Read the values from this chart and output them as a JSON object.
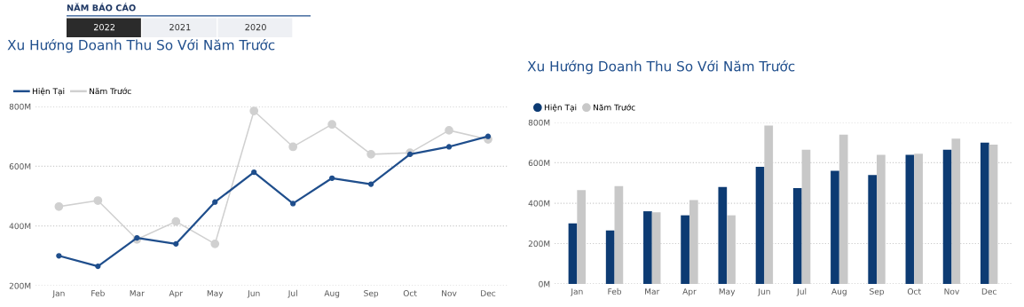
{
  "chart_data": [
    {
      "type": "other",
      "title": "NĂM BÁO CÁO",
      "categories": [
        "2022",
        "2021",
        "2020"
      ],
      "colors": [
        "#2b2b2b",
        "#eef0f4",
        "#eef0f4"
      ]
    },
    {
      "type": "line",
      "title": "Xu Hướng Doanh Thu So Với Năm Trước",
      "categories": [
        "Jan",
        "Feb",
        "Mar",
        "Apr",
        "May",
        "Jun",
        "Jul",
        "Aug",
        "Sep",
        "Oct",
        "Nov",
        "Dec"
      ],
      "series": [
        {
          "name": "Hiện Tại",
          "color": "#1f4e8c",
          "values": [
            300,
            265,
            360,
            340,
            480,
            580,
            475,
            560,
            540,
            640,
            665,
            700
          ]
        },
        {
          "name": "Năm Trước",
          "color": "#d0d0d0",
          "values": [
            465,
            485,
            355,
            415,
            340,
            785,
            665,
            740,
            640,
            645,
            720,
            690
          ]
        }
      ],
      "ylim": [
        200,
        800
      ],
      "yticks": [
        {
          "value": 200,
          "label": "200M"
        },
        {
          "value": 400,
          "label": "400M"
        },
        {
          "value": 600,
          "label": "600M"
        },
        {
          "value": 800,
          "label": "800M"
        }
      ],
      "grid": "y",
      "legend": "top left",
      "marker": "circle",
      "line_style": "solid"
    },
    {
      "type": "bar",
      "title": "Xu Hướng Doanh Thu So Với Năm Trước",
      "categories": [
        "Jan",
        "Feb",
        "Mar",
        "Apr",
        "May",
        "Jun",
        "Jul",
        "Aug",
        "Sep",
        "Oct",
        "Nov",
        "Dec"
      ],
      "series": [
        {
          "name": "Hiện Tại",
          "color": "#0d3b73",
          "values": [
            300,
            265,
            360,
            340,
            480,
            580,
            475,
            560,
            540,
            640,
            665,
            700
          ]
        },
        {
          "name": "Năm Trước",
          "color": "#c8c8c8",
          "values": [
            465,
            485,
            355,
            415,
            340,
            785,
            665,
            740,
            640,
            645,
            720,
            690
          ]
        }
      ],
      "ylim": [
        0,
        800
      ],
      "yticks": [
        {
          "value": 0,
          "label": "0M"
        },
        {
          "value": 200,
          "label": "200M"
        },
        {
          "value": 400,
          "label": "400M"
        },
        {
          "value": 600,
          "label": "600M"
        },
        {
          "value": 800,
          "label": "800M"
        }
      ],
      "grid": "y",
      "legend": "top left"
    }
  ]
}
